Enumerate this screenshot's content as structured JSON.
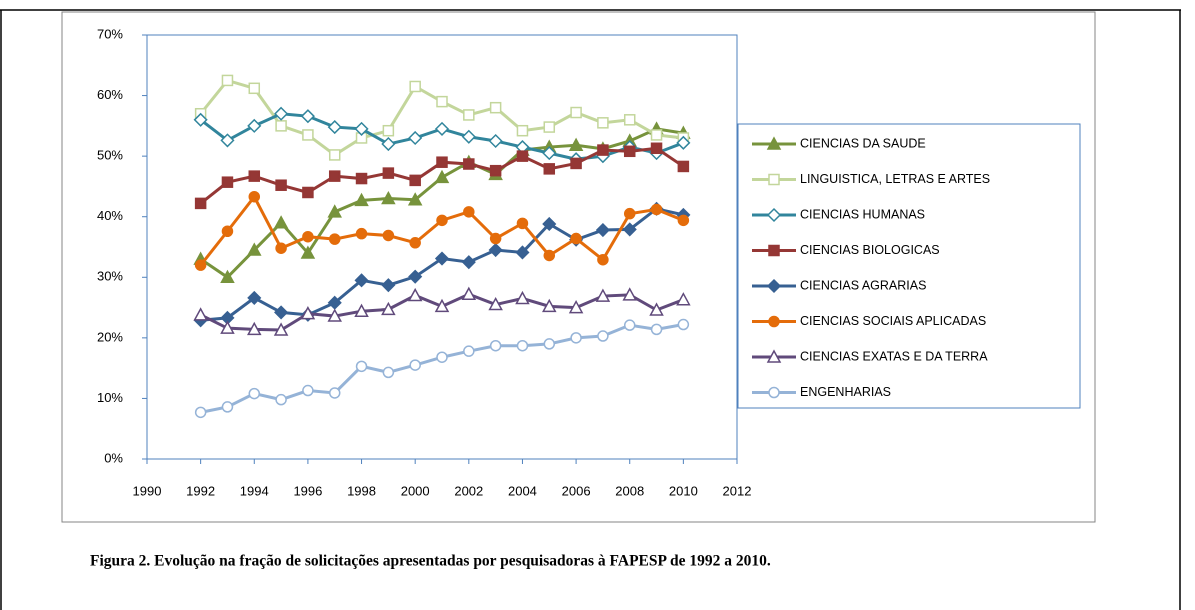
{
  "chart_data": {
    "type": "line",
    "caption": "Figura 2. Evolução na fração de solicitações apresentadas por pesquisadoras à FAPESP de 1992 a 2010.",
    "x": [
      1992,
      1993,
      1994,
      1995,
      1996,
      1997,
      1998,
      1999,
      2000,
      2001,
      2002,
      2003,
      2004,
      2005,
      2006,
      2007,
      2008,
      2009,
      2010
    ],
    "xlim": [
      1990,
      2012
    ],
    "xticks": [
      1990,
      1992,
      1994,
      1996,
      1998,
      2000,
      2002,
      2004,
      2006,
      2008,
      2010,
      2012
    ],
    "ylim": [
      0,
      70
    ],
    "yticks": [
      {
        "value": 0,
        "label": "0%"
      },
      {
        "value": 10,
        "label": "10%"
      },
      {
        "value": 20,
        "label": "20%"
      },
      {
        "value": 30,
        "label": "30%"
      },
      {
        "value": 40,
        "label": "40%"
      },
      {
        "value": 50,
        "label": "50%"
      },
      {
        "value": 60,
        "label": "60%"
      },
      {
        "value": 70,
        "label": "70%"
      }
    ],
    "grid": false,
    "legend": "right",
    "series": [
      {
        "name": "CIENCIAS DA SAUDE",
        "color": "#77933c",
        "marker": "triangle",
        "filled": true,
        "values": [
          33,
          30,
          34.5,
          39,
          34,
          40.8,
          42.7,
          43,
          42.8,
          46.5,
          49,
          47,
          51,
          51.5,
          51.8,
          51.2,
          52.5,
          54.5,
          53.8
        ]
      },
      {
        "name": "LINGUISTICA, LETRAS E ARTES",
        "color": "#c3d69b",
        "marker": "square",
        "filled": false,
        "values": [
          57,
          62.5,
          61.2,
          55,
          53.5,
          50.2,
          53,
          54.2,
          61.5,
          59,
          56.8,
          58,
          54.2,
          54.8,
          57.2,
          55.5,
          56,
          53.5,
          53
        ]
      },
      {
        "name": "CIENCIAS HUMANAS",
        "color": "#31859c",
        "marker": "diamond",
        "filled": false,
        "values": [
          56,
          52.6,
          55,
          57,
          56.6,
          54.8,
          54.5,
          52,
          53,
          54.5,
          53.2,
          52.5,
          51.5,
          50.5,
          49.5,
          50,
          51.5,
          50.5,
          52.2
        ]
      },
      {
        "name": "CIENCIAS BIOLOGICAS",
        "color": "#953735",
        "marker": "square",
        "filled": true,
        "values": [
          42.2,
          45.7,
          46.7,
          45.2,
          44,
          46.7,
          46.3,
          47.2,
          46,
          49,
          48.7,
          47.6,
          50,
          47.9,
          48.8,
          51,
          50.8,
          51.3,
          48.3
        ]
      },
      {
        "name": "CIENCIAS AGRARIAS",
        "color": "#376092",
        "marker": "diamond",
        "filled": true,
        "values": [
          22.9,
          23.3,
          26.6,
          24.2,
          23.8,
          25.8,
          29.5,
          28.7,
          30.1,
          33.1,
          32.5,
          34.5,
          34.1,
          38.8,
          36.2,
          37.8,
          37.9,
          41.3,
          40.3
        ]
      },
      {
        "name": "CIENCIAS SOCIAIS APLICADAS",
        "color": "#e46c0a",
        "marker": "circle",
        "filled": true,
        "values": [
          32,
          37.6,
          43.3,
          34.8,
          36.7,
          36.3,
          37.2,
          36.9,
          35.7,
          39.4,
          40.8,
          36.4,
          38.9,
          33.6,
          36.4,
          32.9,
          40.5,
          41.2,
          39.4
        ]
      },
      {
        "name": "CIENCIAS EXATAS E DA TERRA",
        "color": "#604a7b",
        "marker": "triangle",
        "filled": false,
        "values": [
          23.8,
          21.6,
          21.4,
          21.3,
          24,
          23.6,
          24.4,
          24.7,
          27,
          25.2,
          27.2,
          25.5,
          26.5,
          25.2,
          25,
          26.9,
          27.1,
          24.6,
          26.3
        ]
      },
      {
        "name": "ENGENHARIAS",
        "color": "#95b3d7",
        "marker": "circle",
        "filled": false,
        "values": [
          7.7,
          8.6,
          10.8,
          9.8,
          11.3,
          10.9,
          15.3,
          14.3,
          15.5,
          16.8,
          17.8,
          18.7,
          18.7,
          19,
          20,
          20.3,
          22.1,
          21.4,
          22.2
        ]
      }
    ]
  }
}
